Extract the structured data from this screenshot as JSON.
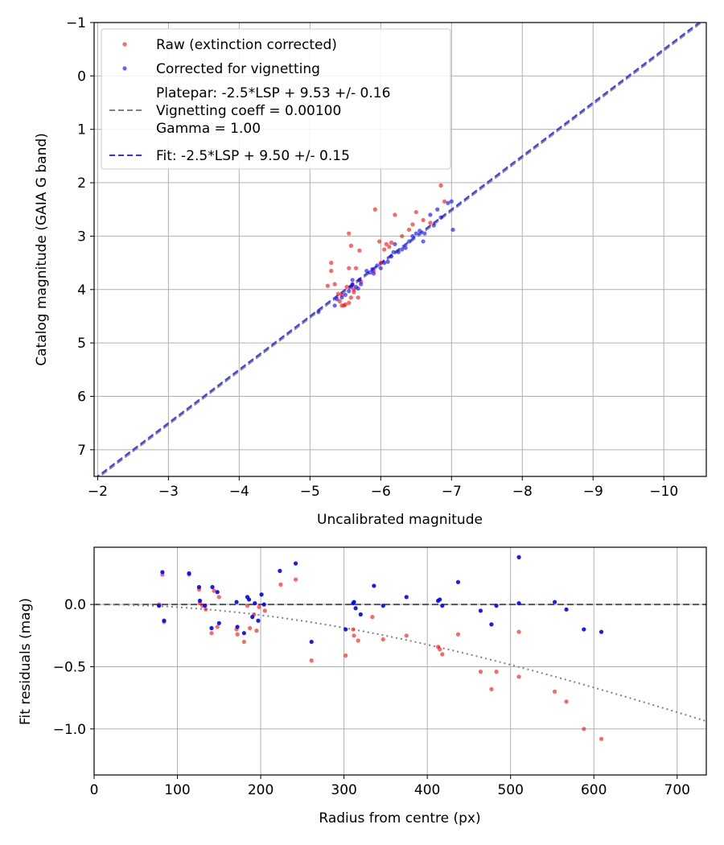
{
  "chart_data": [
    {
      "type": "scatter",
      "xlabel": "Uncalibrated magnitude",
      "ylabel": "Catalog magnitude (GAIA G band)",
      "xlim": [
        -1.95,
        -10.6
      ],
      "ylim": [
        -1.0,
        7.5
      ],
      "x_inverted": true,
      "y_inverted": true,
      "grid": true,
      "xticks": [
        -2,
        -3,
        -4,
        -5,
        -6,
        -7,
        -8,
        -9,
        -10
      ],
      "xtick_labels": [
        "−2",
        "−3",
        "−4",
        "−5",
        "−6",
        "−7",
        "−8",
        "−9",
        "−10"
      ],
      "yticks": [
        -1,
        0,
        1,
        2,
        3,
        4,
        5,
        6,
        7
      ],
      "ytick_labels": [
        "−1",
        "0",
        "1",
        "2",
        "3",
        "4",
        "5",
        "6",
        "7"
      ],
      "legend": {
        "placement": "top-left",
        "entries": [
          {
            "label": "Raw (extinction corrected)",
            "kind": "marker",
            "color": "#ff0000"
          },
          {
            "label": "Corrected for vignetting",
            "kind": "marker",
            "color": "#0000ff"
          },
          {
            "label": "Platepar: -2.5*LSP + 9.53 +/- 0.16\nVignetting coeff = 0.00100\nGamma = 1.00",
            "kind": "line",
            "color": "#808080"
          },
          {
            "label": "Fit: -2.5*LSP + 9.50 +/- 0.15",
            "kind": "line",
            "color": "#3333ee"
          }
        ]
      },
      "lines": [
        {
          "name": "Platepar",
          "slope": 1.0,
          "intercept": 9.53,
          "color": "#808080",
          "dash": "dashed"
        },
        {
          "name": "Fit",
          "slope": 1.0,
          "intercept": 9.5,
          "color": "#3333ee",
          "dash": "dashed"
        }
      ],
      "series": [
        {
          "name": "Raw (extinction corrected)",
          "color": "#ff0000",
          "points": [
            [
              -5.3,
              3.5
            ],
            [
              -5.3,
              3.65
            ],
            [
              -5.25,
              3.93
            ],
            [
              -5.35,
              3.9
            ],
            [
              -5.4,
              4.08
            ],
            [
              -5.45,
              4.3
            ],
            [
              -5.5,
              4.28
            ],
            [
              -5.52,
              3.95
            ],
            [
              -5.55,
              3.6
            ],
            [
              -5.55,
              2.95
            ],
            [
              -5.58,
              3.18
            ],
            [
              -5.6,
              3.92
            ],
            [
              -5.62,
              4.0
            ],
            [
              -5.65,
              3.6
            ],
            [
              -5.68,
              4.15
            ],
            [
              -5.7,
              3.27
            ],
            [
              -5.72,
              3.85
            ],
            [
              -5.9,
              3.65
            ],
            [
              -5.92,
              2.5
            ],
            [
              -5.98,
              3.1
            ],
            [
              -6.0,
              3.5
            ],
            [
              -6.05,
              3.25
            ],
            [
              -6.08,
              3.15
            ],
            [
              -6.12,
              3.2
            ],
            [
              -6.15,
              3.12
            ],
            [
              -6.2,
              2.6
            ],
            [
              -6.3,
              3.0
            ],
            [
              -6.4,
              2.88
            ],
            [
              -6.45,
              2.78
            ],
            [
              -6.5,
              2.55
            ],
            [
              -6.6,
              2.7
            ],
            [
              -6.7,
              2.75
            ],
            [
              -6.85,
              2.05
            ],
            [
              -6.9,
              2.35
            ],
            [
              -5.42,
              4.22
            ],
            [
              -5.48,
              4.3
            ],
            [
              -5.58,
              4.15
            ],
            [
              -5.62,
              4.05
            ],
            [
              -5.45,
              4.1
            ],
            [
              -5.55,
              4.25
            ]
          ]
        },
        {
          "name": "Corrected for vignetting",
          "color": "#0000ff",
          "points": [
            [
              -5.12,
              4.42
            ],
            [
              -5.38,
              4.18
            ],
            [
              -5.45,
              4.15
            ],
            [
              -5.5,
              4.1
            ],
            [
              -5.55,
              4.03
            ],
            [
              -5.6,
              3.9
            ],
            [
              -5.6,
              3.82
            ],
            [
              -5.65,
              3.95
            ],
            [
              -5.7,
              3.82
            ],
            [
              -5.72,
              3.9
            ],
            [
              -5.8,
              3.65
            ],
            [
              -5.85,
              3.68
            ],
            [
              -5.88,
              3.62
            ],
            [
              -5.9,
              3.7
            ],
            [
              -5.95,
              3.55
            ],
            [
              -6.0,
              3.6
            ],
            [
              -6.05,
              3.5
            ],
            [
              -6.1,
              3.48
            ],
            [
              -6.15,
              3.38
            ],
            [
              -6.18,
              3.3
            ],
            [
              -6.2,
              3.15
            ],
            [
              -6.25,
              3.3
            ],
            [
              -6.3,
              3.25
            ],
            [
              -6.35,
              3.22
            ],
            [
              -6.4,
              3.1
            ],
            [
              -6.45,
              3.0
            ],
            [
              -6.5,
              2.95
            ],
            [
              -6.55,
              2.9
            ],
            [
              -6.6,
              3.1
            ],
            [
              -6.62,
              2.95
            ],
            [
              -6.7,
              2.6
            ],
            [
              -6.75,
              2.8
            ],
            [
              -6.8,
              2.5
            ],
            [
              -6.85,
              2.65
            ],
            [
              -6.95,
              2.38
            ],
            [
              -7.0,
              2.35
            ],
            [
              -7.02,
              2.88
            ],
            [
              -5.35,
              4.3
            ],
            [
              -5.58,
              3.95
            ],
            [
              -5.68,
              3.98
            ]
          ]
        }
      ]
    },
    {
      "type": "scatter",
      "xlabel": "Radius from centre (px)",
      "ylabel": "Fit residuals (mag)",
      "xlim": [
        0,
        735
      ],
      "ylim": [
        -1.37,
        0.46
      ],
      "grid": true,
      "xticks": [
        0,
        100,
        200,
        300,
        400,
        500,
        600,
        700
      ],
      "xtick_labels": [
        "0",
        "100",
        "200",
        "300",
        "400",
        "500",
        "600",
        "700"
      ],
      "yticks": [
        0.0,
        -0.5,
        -1.0
      ],
      "ytick_labels": [
        "0.0",
        "−0.5",
        "−1.0"
      ],
      "reference_lines": [
        {
          "name": "zero",
          "type": "hline",
          "y": 0.0,
          "color": "#404040",
          "dash": "dashed"
        },
        {
          "name": "vignetting model",
          "type": "curve",
          "coeff": 0.001,
          "color": "#808080",
          "dash": "dotted"
        }
      ],
      "series": [
        {
          "name": "Raw (extinction corrected)",
          "color": "#ff0000",
          "points": [
            [
              78,
              0.0
            ],
            [
              82,
              0.24
            ],
            [
              84,
              -0.14
            ],
            [
              114,
              0.24
            ],
            [
              126,
              0.12
            ],
            [
              127,
              0.01
            ],
            [
              130,
              -0.01
            ],
            [
              134,
              -0.04
            ],
            [
              141,
              -0.23
            ],
            [
              144,
              0.11
            ],
            [
              148,
              -0.18
            ],
            [
              150,
              0.06
            ],
            [
              171,
              -0.2
            ],
            [
              172,
              -0.24
            ],
            [
              180,
              -0.3
            ],
            [
              184,
              -0.01
            ],
            [
              187,
              -0.19
            ],
            [
              192,
              -0.08
            ],
            [
              195,
              -0.21
            ],
            [
              198,
              -0.02
            ],
            [
              205,
              -0.05
            ],
            [
              224,
              0.16
            ],
            [
              242,
              0.2
            ],
            [
              261,
              -0.45
            ],
            [
              302,
              -0.41
            ],
            [
              311,
              -0.2
            ],
            [
              312,
              -0.25
            ],
            [
              317,
              -0.29
            ],
            [
              334,
              -0.1
            ],
            [
              347,
              -0.28
            ],
            [
              375,
              -0.25
            ],
            [
              413,
              -0.34
            ],
            [
              415,
              -0.36
            ],
            [
              418,
              -0.4
            ],
            [
              437,
              -0.24
            ],
            [
              464,
              -0.54
            ],
            [
              477,
              -0.68
            ],
            [
              483,
              -0.54
            ],
            [
              510,
              -0.58
            ],
            [
              510,
              -0.22
            ],
            [
              553,
              -0.7
            ],
            [
              567,
              -0.78
            ],
            [
              588,
              -1.0
            ],
            [
              609,
              -1.08
            ]
          ]
        },
        {
          "name": "Corrected for vignetting",
          "color": "#0000ff",
          "points": [
            [
              78,
              -0.01
            ],
            [
              82,
              0.26
            ],
            [
              84,
              -0.13
            ],
            [
              114,
              0.25
            ],
            [
              126,
              0.14
            ],
            [
              127,
              0.03
            ],
            [
              133,
              -0.01
            ],
            [
              141,
              -0.19
            ],
            [
              142,
              0.14
            ],
            [
              148,
              0.1
            ],
            [
              150,
              -0.15
            ],
            [
              171,
              0.02
            ],
            [
              172,
              -0.18
            ],
            [
              180,
              -0.23
            ],
            [
              184,
              0.06
            ],
            [
              186,
              0.04
            ],
            [
              190,
              -0.1
            ],
            [
              193,
              0.01
            ],
            [
              197,
              -0.13
            ],
            [
              201,
              0.08
            ],
            [
              204,
              0.0
            ],
            [
              223,
              0.27
            ],
            [
              242,
              0.33
            ],
            [
              261,
              -0.3
            ],
            [
              302,
              -0.2
            ],
            [
              311,
              0.01
            ],
            [
              312,
              0.02
            ],
            [
              314,
              -0.03
            ],
            [
              320,
              -0.08
            ],
            [
              336,
              0.15
            ],
            [
              347,
              -0.01
            ],
            [
              375,
              0.06
            ],
            [
              413,
              0.03
            ],
            [
              415,
              0.04
            ],
            [
              418,
              -0.01
            ],
            [
              437,
              0.18
            ],
            [
              464,
              -0.05
            ],
            [
              477,
              -0.16
            ],
            [
              483,
              -0.01
            ],
            [
              510,
              0.38
            ],
            [
              510,
              0.01
            ],
            [
              553,
              0.02
            ],
            [
              567,
              -0.04
            ],
            [
              588,
              -0.2
            ],
            [
              609,
              -0.22
            ]
          ]
        }
      ]
    }
  ]
}
